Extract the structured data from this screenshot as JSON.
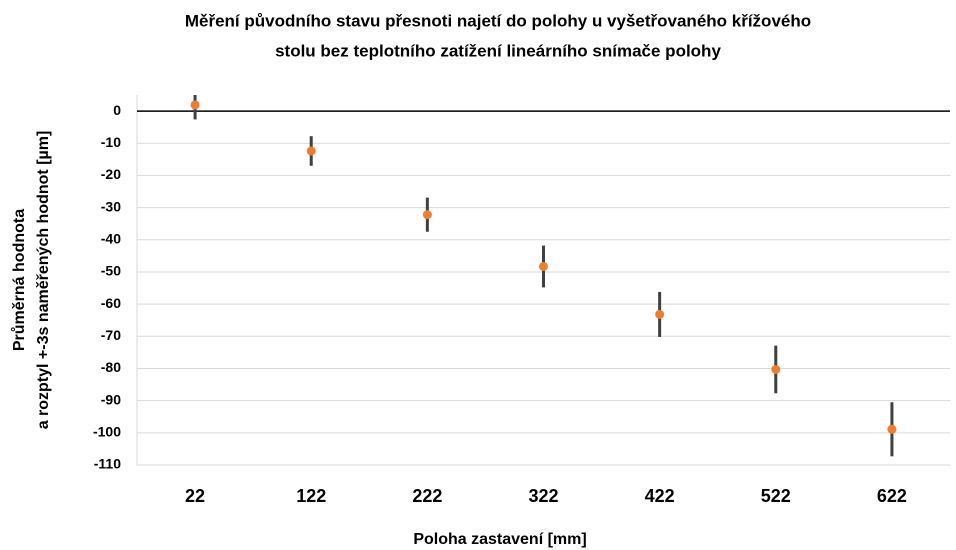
{
  "chart_data": {
    "type": "errorbar",
    "title": [
      "Měření původního stavu přesnoti najetí do polohy u vyšetřovaného křížového",
      "stolu bez teplotního zatížení lineárního snímače polohy"
    ],
    "y_label": [
      "Průměrná hodnota",
      "a rozptyl +-3s naměřených hodnot [µm]"
    ],
    "x_label": "Poloha zastavení [mm]",
    "categories": [
      "22",
      "122",
      "222",
      "322",
      "422",
      "522",
      "622"
    ],
    "values": [
      1.9,
      -12.4,
      -32.2,
      -48.3,
      -63.2,
      -80.3,
      -98.9
    ],
    "errors": [
      4.5,
      4.6,
      5.3,
      6.5,
      7,
      7.4,
      8.4
    ],
    "color": "#ed7d31",
    "error_color": "#404040",
    "ylim": [
      -110,
      5
    ],
    "yticks": [
      0,
      -10,
      -20,
      -30,
      -40,
      -50,
      -60,
      -70,
      -80,
      -90,
      -100,
      -110
    ],
    "grid": true
  }
}
